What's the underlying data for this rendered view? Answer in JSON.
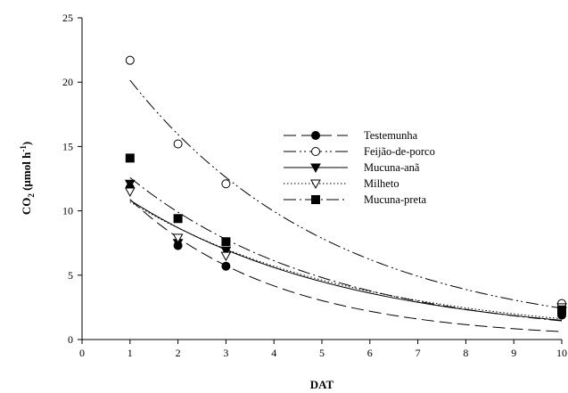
{
  "chart_data": {
    "type": "scatter",
    "title": "",
    "xlabel": "DAT",
    "ylabel_main": "CO",
    "ylabel_sub": "2",
    "ylabel_rest": " (µmol h",
    "ylabel_sup": "-1",
    "ylabel_close": ")",
    "xlim": [
      0,
      10
    ],
    "ylim": [
      0,
      25
    ],
    "xticks": [
      0,
      1,
      2,
      3,
      4,
      5,
      6,
      7,
      8,
      9,
      10
    ],
    "yticks": [
      0,
      5,
      10,
      15,
      20,
      25
    ],
    "legend_position": "top-right",
    "series": [
      {
        "name": "Testemunha",
        "marker": "circle-filled",
        "line": "dashed",
        "x": [
          1,
          2,
          3,
          10
        ],
        "y": [
          11.8,
          7.3,
          5.7,
          1.9
        ],
        "fit_a": 15.0,
        "fit_b": 0.32
      },
      {
        "name": "Feijão-de-porco",
        "marker": "circle-open",
        "line": "dash-dot-dot",
        "x": [
          1,
          2,
          3,
          10
        ],
        "y": [
          21.7,
          15.2,
          12.1,
          2.8
        ],
        "fit_a": 25.5,
        "fit_b": 0.235
      },
      {
        "name": "Mucuna-anã",
        "marker": "triangle-down-filled",
        "line": "solid",
        "x": [
          1,
          2,
          3,
          10
        ],
        "y": [
          12.1,
          7.5,
          6.9,
          2.2
        ],
        "fit_a": 13.5,
        "fit_b": 0.22
      },
      {
        "name": "Milheto",
        "marker": "triangle-down-open",
        "line": "dotted",
        "x": [
          1,
          2,
          3,
          10
        ],
        "y": [
          11.5,
          7.9,
          6.5,
          2.5
        ],
        "fit_a": 13.2,
        "fit_b": 0.21
      },
      {
        "name": "Mucuna-preta",
        "marker": "square-filled",
        "line": "dash-dot",
        "x": [
          1,
          2,
          3,
          10
        ],
        "y": [
          14.1,
          9.4,
          7.6,
          2.3
        ],
        "fit_a": 16.0,
        "fit_b": 0.24
      }
    ]
  }
}
